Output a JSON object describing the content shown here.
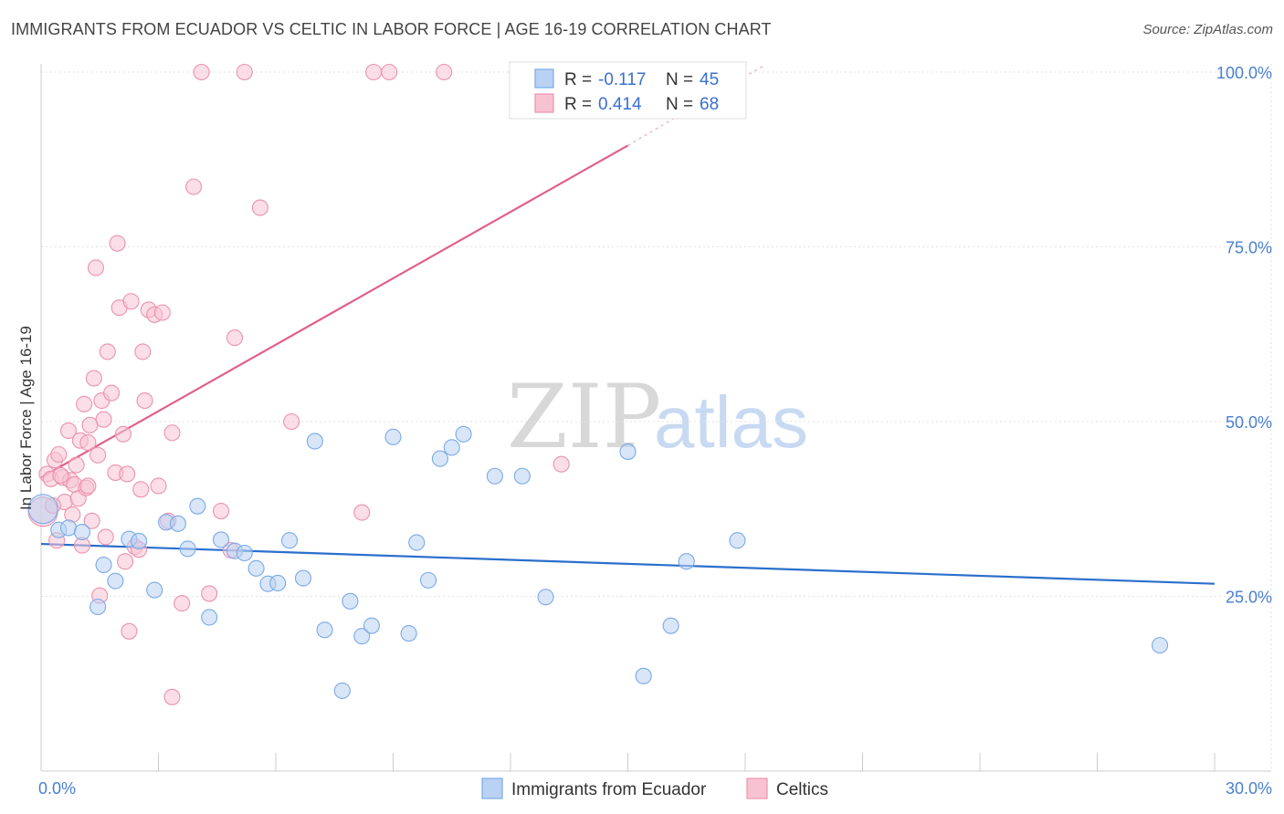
{
  "title": "IMMIGRANTS FROM ECUADOR VS CELTIC IN LABOR FORCE | AGE 16-19 CORRELATION CHART",
  "source": "Source: ZipAtlas.com",
  "watermark": {
    "zip": "ZIP",
    "atlas": "atlas"
  },
  "chart_data": {
    "type": "scatter",
    "title": "IMMIGRANTS FROM ECUADOR VS CELTIC IN LABOR FORCE | AGE 16-19 CORRELATION CHART",
    "xlabel": "",
    "ylabel": "In Labor Force | Age 16-19",
    "xlim": [
      0,
      30
    ],
    "ylim": [
      0,
      103
    ],
    "x_tick_labels": [
      "0.0%",
      "30.0%"
    ],
    "y_ticks": [
      25,
      50,
      75,
      100
    ],
    "y_tick_labels": [
      "25.0%",
      "50.0%",
      "75.0%",
      "100.0%"
    ],
    "grid": true,
    "legend_position": "top-center",
    "legend": [
      {
        "r_label": "R =",
        "r_value": "-0.117",
        "n_label": "N =",
        "n_value": "45"
      },
      {
        "r_label": "R =",
        "r_value": "0.414",
        "n_label": "N =",
        "n_value": "68"
      }
    ],
    "series": [
      {
        "name": "Immigrants from Ecuador",
        "color": "#7aaae6",
        "fill": "#b9d2f3",
        "line_color": "#2a6fcc",
        "trend": {
          "x": [
            0,
            30
          ],
          "y": [
            32.5,
            26.8
          ]
        },
        "points": [
          [
            0.05,
            37.5
          ],
          [
            0.45,
            34.5
          ],
          [
            0.7,
            34.8
          ],
          [
            1.05,
            34.2
          ],
          [
            1.6,
            29.5
          ],
          [
            1.9,
            27.2
          ],
          [
            1.45,
            23.5
          ],
          [
            2.25,
            33.2
          ],
          [
            2.5,
            32.9
          ],
          [
            2.9,
            25.9
          ],
          [
            3.2,
            35.6
          ],
          [
            3.5,
            35.4
          ],
          [
            3.75,
            31.8
          ],
          [
            4.0,
            37.9
          ],
          [
            4.3,
            22.0
          ],
          [
            4.6,
            33.1
          ],
          [
            4.95,
            31.5
          ],
          [
            5.2,
            31.2
          ],
          [
            5.5,
            29.0
          ],
          [
            5.8,
            26.8
          ],
          [
            6.05,
            26.9
          ],
          [
            6.35,
            33.0
          ],
          [
            6.7,
            27.6
          ],
          [
            7.0,
            47.2
          ],
          [
            7.25,
            20.2
          ],
          [
            7.7,
            11.5
          ],
          [
            7.9,
            24.3
          ],
          [
            8.2,
            19.3
          ],
          [
            8.45,
            20.8
          ],
          [
            9.0,
            47.8
          ],
          [
            9.4,
            19.7
          ],
          [
            9.6,
            32.7
          ],
          [
            9.9,
            27.3
          ],
          [
            10.2,
            44.7
          ],
          [
            10.5,
            46.3
          ],
          [
            10.8,
            48.2
          ],
          [
            11.6,
            42.2
          ],
          [
            12.3,
            42.2
          ],
          [
            12.9,
            24.9
          ],
          [
            15.0,
            45.7
          ],
          [
            15.4,
            13.6
          ],
          [
            16.1,
            20.8
          ],
          [
            16.5,
            30.0
          ],
          [
            17.8,
            33.0
          ],
          [
            28.6,
            18.0
          ]
        ]
      },
      {
        "name": "Celtics",
        "color": "#ec92ae",
        "fill": "#f7c3d3",
        "line_color": "#e0608a",
        "trend": {
          "x": [
            0,
            15
          ],
          "y": [
            42.0,
            89.5
          ]
        },
        "trend_dashed": {
          "x": [
            15,
            18.5
          ],
          "y": [
            89.5,
            101
          ]
        },
        "points": [
          [
            0.05,
            37.1
          ],
          [
            0.15,
            42.5
          ],
          [
            0.25,
            41.8
          ],
          [
            0.35,
            44.5
          ],
          [
            0.45,
            45.3
          ],
          [
            0.55,
            42.0
          ],
          [
            0.6,
            38.5
          ],
          [
            0.7,
            48.7
          ],
          [
            0.75,
            41.6
          ],
          [
            0.85,
            41.0
          ],
          [
            0.9,
            43.8
          ],
          [
            0.95,
            39.0
          ],
          [
            1.0,
            47.3
          ],
          [
            1.05,
            32.3
          ],
          [
            1.1,
            52.5
          ],
          [
            1.15,
            40.5
          ],
          [
            1.2,
            47.0
          ],
          [
            1.25,
            49.5
          ],
          [
            1.3,
            35.8
          ],
          [
            1.35,
            56.2
          ],
          [
            1.4,
            72.0
          ],
          [
            1.45,
            45.2
          ],
          [
            1.5,
            25.1
          ],
          [
            1.55,
            53.0
          ],
          [
            1.6,
            50.3
          ],
          [
            1.7,
            60.0
          ],
          [
            1.8,
            54.1
          ],
          [
            1.9,
            42.7
          ],
          [
            1.95,
            75.5
          ],
          [
            2.0,
            66.3
          ],
          [
            2.1,
            48.2
          ],
          [
            2.15,
            30.0
          ],
          [
            2.25,
            20.0
          ],
          [
            2.3,
            67.2
          ],
          [
            2.4,
            32.1
          ],
          [
            2.5,
            31.7
          ],
          [
            2.55,
            40.3
          ],
          [
            2.6,
            60.0
          ],
          [
            2.65,
            53.0
          ],
          [
            2.75,
            66.0
          ],
          [
            2.9,
            65.3
          ],
          [
            3.0,
            40.8
          ],
          [
            3.1,
            65.6
          ],
          [
            3.25,
            35.8
          ],
          [
            3.35,
            48.4
          ],
          [
            3.35,
            10.6
          ],
          [
            3.6,
            24.0
          ],
          [
            3.9,
            83.6
          ],
          [
            4.1,
            100.0
          ],
          [
            4.3,
            25.4
          ],
          [
            4.6,
            37.2
          ],
          [
            4.85,
            31.6
          ],
          [
            4.95,
            62.0
          ],
          [
            5.2,
            100.0
          ],
          [
            5.6,
            80.6
          ],
          [
            6.4,
            50.0
          ],
          [
            8.2,
            37.0
          ],
          [
            8.5,
            100.0
          ],
          [
            8.9,
            100.0
          ],
          [
            10.3,
            100.0
          ],
          [
            13.3,
            43.9
          ],
          [
            0.3,
            38.0
          ],
          [
            0.5,
            42.3
          ],
          [
            1.65,
            33.5
          ],
          [
            0.8,
            36.7
          ],
          [
            2.2,
            42.5
          ],
          [
            0.4,
            33.0
          ],
          [
            1.2,
            40.8
          ]
        ]
      }
    ]
  }
}
